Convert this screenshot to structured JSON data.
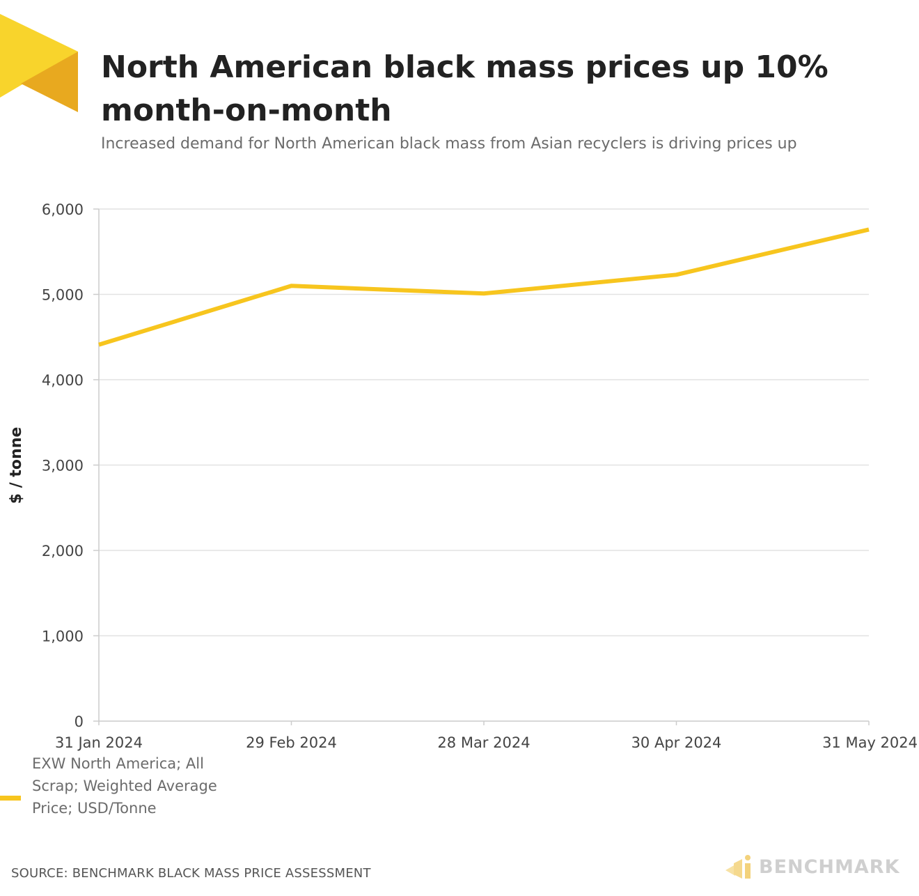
{
  "header": {
    "title": "North American black mass prices up 10% month-on-month",
    "subtitle": "Increased demand for North American black mass from Asian recyclers is driving prices up"
  },
  "colors": {
    "series": "#f7c51e",
    "corner_light": "#f8d42c",
    "corner_dark": "#e8a91f",
    "grid": "#e2e2e2",
    "axis": "#cccccc"
  },
  "legend": {
    "label": "EXW North America; All Scrap; Weighted Average Price; USD/Tonne"
  },
  "footer": {
    "source": "SOURCE: BENCHMARK BLACK MASS PRICE ASSESSMENT",
    "brand": "BENCHMARK"
  },
  "chart_data": {
    "type": "line",
    "x": [
      "31 Jan 2024",
      "29 Feb 2024",
      "28 Mar 2024",
      "30 Apr 2024",
      "31 May 2024"
    ],
    "series": [
      {
        "name": "EXW North America; All Scrap; Weighted Average Price; USD/Tonne",
        "values": [
          4410,
          5100,
          5010,
          5230,
          5760
        ]
      }
    ],
    "ylabel": "$ / tonne",
    "xlabel": "",
    "ylim": [
      0,
      6000
    ],
    "yticks": [
      0,
      1000,
      2000,
      3000,
      4000,
      5000,
      6000
    ],
    "ytick_labels": [
      "0",
      "1,000",
      "2,000",
      "3,000",
      "4,000",
      "5,000",
      "6,000"
    ],
    "grid": true,
    "legend_position": "bottom-left"
  }
}
